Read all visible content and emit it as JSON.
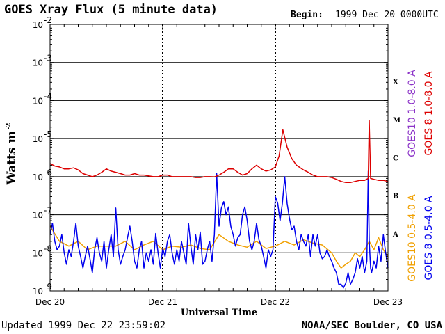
{
  "header": {
    "title": "GOES Xray Flux (5 minute data)",
    "begin_label": "Begin:",
    "begin_value": "1999 Dec 20 0000UTC"
  },
  "footer": {
    "updated": "Updated 1999 Dec 22 23:59:02",
    "credit": "NOAA/SEC Boulder, CO USA"
  },
  "chart_data": {
    "type": "line",
    "title": "GOES Xray Flux (5 minute data)",
    "xlabel": "Universal Time",
    "ylabel": "Watts m",
    "ylabel_sup": "-2",
    "log_scale": true,
    "ylim": [
      1e-09,
      0.01
    ],
    "xlim": [
      0,
      72
    ],
    "x_unit": "hours since 1999 Dec 20 00:00 UT",
    "x_ticks": [
      {
        "x": 0,
        "label": "Dec 20"
      },
      {
        "x": 24,
        "label": "Dec 21"
      },
      {
        "x": 48,
        "label": "Dec 22"
      },
      {
        "x": 72,
        "label": "Dec 23"
      }
    ],
    "y_ticks": [
      {
        "exp": -9,
        "label": "10",
        "sup": "-9"
      },
      {
        "exp": -8,
        "label": "10",
        "sup": "-8"
      },
      {
        "exp": -7,
        "label": "10",
        "sup": "-7"
      },
      {
        "exp": -6,
        "label": "10",
        "sup": "-6"
      },
      {
        "exp": -5,
        "label": "10",
        "sup": "-5"
      },
      {
        "exp": -4,
        "label": "10",
        "sup": "-4"
      },
      {
        "exp": -3,
        "label": "10",
        "sup": "-3"
      },
      {
        "exp": -2,
        "label": "10",
        "sup": "-2"
      }
    ],
    "flare_classes": [
      {
        "label": "A",
        "exp": -8
      },
      {
        "label": "B",
        "exp": -7
      },
      {
        "label": "C",
        "exp": -6
      },
      {
        "label": "M",
        "exp": -5
      },
      {
        "label": "X",
        "exp": -4
      }
    ],
    "grid": true,
    "colors": {
      "goes10_long": "#8c34c8",
      "goes8_long": "#dd0000",
      "goes10_short": "#f0a000",
      "goes8_short": "#0000ee"
    },
    "series": [
      {
        "name": "GOES 8 1.0-8.0 A",
        "color": "#dd0000",
        "x": [
          0,
          1,
          2,
          3,
          4,
          5,
          6,
          7,
          8,
          9,
          10,
          11,
          12,
          13,
          14,
          15,
          16,
          17,
          18,
          19,
          20,
          21,
          22,
          23,
          24,
          25,
          26,
          27,
          28,
          29,
          30,
          31,
          32,
          33,
          34,
          35,
          36,
          37,
          38,
          39,
          40,
          41,
          42,
          43,
          44,
          45,
          46,
          47,
          48,
          48.8,
          49.6,
          50.5,
          51.5,
          52.5,
          54,
          55,
          56,
          57,
          58,
          59,
          60,
          61,
          62,
          63,
          64,
          65,
          66,
          67,
          67.8,
          68,
          68.3,
          69,
          70,
          71,
          72
        ],
        "values": [
          2.2e-06,
          1.9e-06,
          1.8e-06,
          1.6e-06,
          1.6e-06,
          1.7e-06,
          1.5e-06,
          1.2e-06,
          1.1e-06,
          1e-06,
          1.1e-06,
          1.3e-06,
          1.6e-06,
          1.4e-06,
          1.3e-06,
          1.2e-06,
          1.1e-06,
          1.1e-06,
          1.2e-06,
          1.1e-06,
          1.1e-06,
          1.05e-06,
          1e-06,
          1e-06,
          1.1e-06,
          1.1e-06,
          1e-06,
          1e-06,
          1e-06,
          1e-06,
          1e-06,
          9.5e-07,
          9.5e-07,
          1e-06,
          1e-06,
          9.8e-07,
          1.1e-06,
          1.3e-06,
          1.6e-06,
          1.6e-06,
          1.3e-06,
          1.1e-06,
          1.2e-06,
          1.6e-06,
          2e-06,
          1.6e-06,
          1.4e-06,
          1.5e-06,
          1.8e-06,
          3.5e-06,
          1.7e-05,
          6e-06,
          3e-06,
          2e-06,
          1.5e-06,
          1.3e-06,
          1.1e-06,
          1e-06,
          1e-06,
          1e-06,
          9.5e-07,
          8.5e-07,
          7.5e-07,
          7e-07,
          7e-07,
          7.5e-07,
          8e-07,
          8e-07,
          9e-07,
          3e-05,
          9e-07,
          8.5e-07,
          8e-07,
          8e-07,
          7.5e-07
        ]
      },
      {
        "name": "GOES10 1.0-8.0 A",
        "color": "#8c34c8",
        "x": [],
        "values": []
      },
      {
        "name": "GOES 8 0.5-4.0 A",
        "color": "#0000ee",
        "x": [
          0,
          0.5,
          1,
          1.5,
          2,
          2.5,
          3,
          3.5,
          4,
          4.5,
          5,
          5.5,
          6,
          6.5,
          7,
          7.5,
          8,
          8.5,
          9,
          9.5,
          10,
          10.5,
          11,
          11.5,
          12,
          12.5,
          13,
          13.5,
          14,
          14.5,
          15,
          15.5,
          16,
          16.5,
          17,
          17.5,
          18,
          18.5,
          19,
          19.5,
          20,
          20.5,
          21,
          21.5,
          22,
          22.5,
          23,
          23.5,
          24,
          24.5,
          25,
          25.5,
          26,
          26.5,
          27,
          27.5,
          28,
          28.5,
          29,
          29.5,
          30,
          30.5,
          31,
          31.5,
          32,
          32.5,
          33,
          33.5,
          34,
          34.5,
          35,
          35.5,
          36,
          36.5,
          37,
          37.5,
          38,
          38.5,
          39,
          39.5,
          40,
          40.5,
          41,
          41.5,
          42,
          42.5,
          43,
          43.5,
          44,
          44.5,
          45,
          45.5,
          46,
          46.5,
          47,
          47.5,
          48,
          48.5,
          49,
          49.5,
          50,
          50.5,
          51,
          51.5,
          52,
          52.5,
          53,
          53.5,
          54,
          54.5,
          55,
          55.5,
          56,
          56.5,
          57,
          57.5,
          58,
          58.5,
          59,
          59.5,
          60,
          60.5,
          61,
          61.5,
          62,
          62.5,
          63,
          63.5,
          64,
          64.5,
          65,
          65.5,
          66,
          66.5,
          67,
          67.5,
          67.8,
          68,
          68.3,
          68.5,
          69,
          69.5,
          70,
          70.5,
          71,
          71.5,
          72
        ],
        "values": [
          3e-08,
          6e-08,
          2e-08,
          1.2e-08,
          1.5e-08,
          3e-08,
          1e-08,
          5e-09,
          1.2e-08,
          8e-09,
          2e-08,
          6e-08,
          1.5e-08,
          8e-09,
          4e-09,
          8e-09,
          1.5e-08,
          7e-09,
          3e-09,
          1.2e-08,
          2.5e-08,
          1e-08,
          6e-09,
          2e-08,
          4e-09,
          1.2e-08,
          3e-08,
          8e-09,
          1.5e-07,
          1.2e-08,
          5e-09,
          8e-09,
          1.2e-08,
          2.5e-08,
          5e-08,
          2e-08,
          6e-09,
          4e-09,
          1.2e-08,
          2e-08,
          4e-09,
          1e-08,
          6e-09,
          1.2e-08,
          5e-09,
          3.2e-08,
          1e-08,
          4e-09,
          1.3e-08,
          8e-09,
          2e-08,
          3e-08,
          1e-08,
          5e-09,
          1.2e-08,
          6e-09,
          2e-08,
          1e-08,
          5e-09,
          6e-08,
          1.5e-08,
          5e-09,
          3e-08,
          1.2e-08,
          3.5e-08,
          5e-09,
          6e-09,
          1.2e-08,
          2e-08,
          6e-09,
          3e-08,
          1.2e-06,
          5e-08,
          1.5e-07,
          2.2e-07,
          1e-07,
          1.6e-07,
          5e-08,
          3e-08,
          1.5e-08,
          2.5e-08,
          3e-08,
          1e-07,
          1.6e-07,
          7e-08,
          2e-08,
          1.2e-08,
          2e-08,
          6e-08,
          2.2e-08,
          1.5e-08,
          8e-09,
          4e-09,
          1.2e-08,
          8e-09,
          1.2e-08,
          3e-07,
          2e-07,
          7e-08,
          2e-07,
          1e-06,
          2e-07,
          8e-08,
          4e-08,
          5e-08,
          2e-08,
          1.2e-08,
          3e-08,
          2e-08,
          1.5e-08,
          3e-08,
          8e-09,
          3e-08,
          1.5e-08,
          3e-08,
          1e-08,
          7e-09,
          8e-09,
          1.2e-08,
          8e-09,
          6e-09,
          4e-09,
          3e-09,
          1.5e-09,
          1.5e-09,
          1.2e-09,
          1.6e-09,
          3e-09,
          1.5e-09,
          2e-09,
          3e-09,
          7e-09,
          4e-09,
          8e-09,
          3e-09,
          6e-09,
          1.4e-06,
          2e-08,
          4e-09,
          3e-09,
          6e-09,
          4e-09,
          1.5e-08,
          6e-09,
          3e-08,
          1e-08,
          4e-09
        ]
      },
      {
        "name": "GOES10 0.5-4.0 A",
        "color": "#f0a000",
        "x": [
          0,
          2,
          4,
          6,
          8,
          10,
          12,
          14,
          16,
          18,
          20,
          22,
          24,
          26,
          28,
          30,
          32,
          34,
          36,
          38,
          40,
          42,
          44,
          46,
          48,
          50,
          52,
          54,
          56,
          58,
          60,
          61,
          62,
          63,
          64,
          65,
          66,
          67,
          68,
          69,
          70,
          71,
          72
        ],
        "values": [
          5e-08,
          2e-08,
          1.5e-08,
          2e-08,
          1.2e-08,
          1.5e-08,
          1.5e-08,
          1.5e-08,
          2e-08,
          1.2e-08,
          1.6e-08,
          2e-08,
          1.2e-08,
          1.5e-08,
          1.4e-08,
          1.6e-08,
          1.3e-08,
          1.2e-08,
          3e-08,
          2e-08,
          1.6e-08,
          1.4e-08,
          2e-08,
          1.3e-08,
          1.5e-08,
          2e-08,
          1.6e-08,
          2.2e-08,
          1.8e-08,
          1.6e-08,
          1e-08,
          6e-09,
          4e-09,
          5e-09,
          6e-09,
          1e-08,
          8e-09,
          1.2e-08,
          2e-08,
          1.2e-08,
          2.5e-08,
          1.2e-08,
          8e-09
        ]
      }
    ]
  }
}
